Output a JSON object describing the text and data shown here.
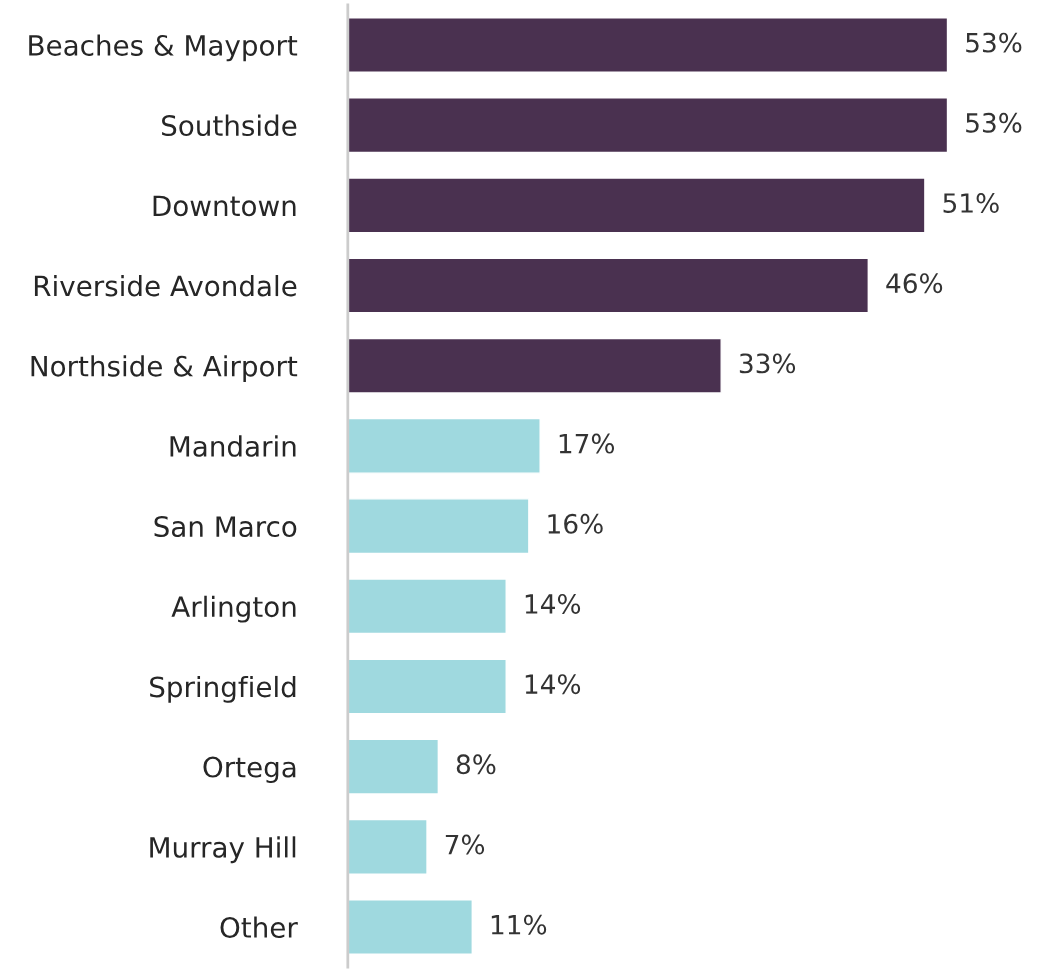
{
  "chart_data": {
    "type": "bar",
    "orientation": "horizontal",
    "categories": [
      "Beaches & Mayport",
      "Southside",
      "Downtown",
      "Riverside Avondale",
      "Northside & Airport",
      "Mandarin",
      "San Marco",
      "Arlington",
      "Springfield",
      "Ortega",
      "Murray Hill",
      "Other"
    ],
    "values": [
      53,
      53,
      51,
      46,
      33,
      17,
      16,
      14,
      14,
      8,
      7,
      11
    ],
    "colors": [
      "#4a3150",
      "#4a3150",
      "#4a3150",
      "#4a3150",
      "#4a3150",
      "#9fd9df",
      "#9fd9df",
      "#9fd9df",
      "#9fd9df",
      "#9fd9df",
      "#9fd9df",
      "#9fd9df"
    ],
    "value_labels": [
      "53%",
      "53%",
      "51%",
      "46%",
      "33%",
      "17%",
      "16%",
      "14%",
      "14%",
      "8%",
      "7%",
      "11%"
    ],
    "grid": false,
    "legend": false
  }
}
